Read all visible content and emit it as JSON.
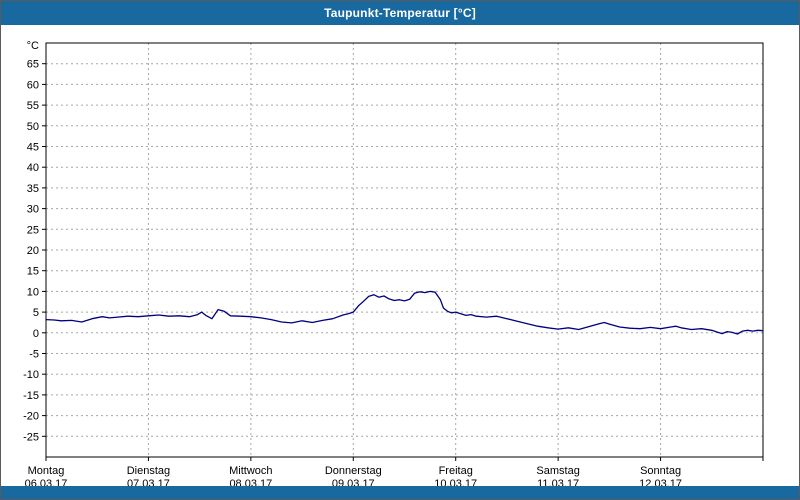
{
  "window": {
    "title": "Taupunkt-Temperatur [°C]",
    "titlebar_color": "#17699f",
    "bottombar_color": "#17699f"
  },
  "chart_data": {
    "type": "line",
    "title": "Taupunkt-Temperatur [°C]",
    "ylabel": "°C",
    "ylim": [
      -30,
      70
    ],
    "xlim": [
      0,
      7
    ],
    "grid": "dashed",
    "legend": "none",
    "yticks": [
      65,
      60,
      55,
      50,
      45,
      40,
      35,
      30,
      25,
      20,
      15,
      10,
      5,
      0,
      -5,
      -10,
      -15,
      -20,
      -25
    ],
    "x_days": [
      {
        "name": "Montag",
        "date": "06.03.17"
      },
      {
        "name": "Dienstag",
        "date": "07.03.17"
      },
      {
        "name": "Mittwoch",
        "date": "08.03.17"
      },
      {
        "name": "Donnerstag",
        "date": "09.03.17"
      },
      {
        "name": "Freitag",
        "date": "10.03.17"
      },
      {
        "name": "Samstag",
        "date": "11.03.17"
      },
      {
        "name": "Sonntag",
        "date": "12.03.17"
      }
    ],
    "series": [
      {
        "name": "Taupunkt-Temperatur",
        "color": "#000080",
        "x": [
          0.0,
          0.08,
          0.15,
          0.25,
          0.35,
          0.45,
          0.55,
          0.62,
          0.7,
          0.8,
          0.9,
          1.0,
          1.1,
          1.2,
          1.3,
          1.4,
          1.48,
          1.52,
          1.56,
          1.62,
          1.68,
          1.74,
          1.8,
          1.9,
          2.0,
          2.1,
          2.2,
          2.3,
          2.4,
          2.5,
          2.6,
          2.7,
          2.8,
          2.9,
          2.95,
          3.0,
          3.05,
          3.1,
          3.15,
          3.2,
          3.25,
          3.3,
          3.35,
          3.4,
          3.45,
          3.5,
          3.55,
          3.6,
          3.65,
          3.7,
          3.75,
          3.8,
          3.85,
          3.88,
          3.92,
          3.96,
          4.0,
          4.05,
          4.1,
          4.15,
          4.2,
          4.3,
          4.4,
          4.5,
          4.6,
          4.7,
          4.8,
          4.9,
          5.0,
          5.1,
          5.2,
          5.3,
          5.4,
          5.45,
          5.5,
          5.6,
          5.7,
          5.8,
          5.9,
          6.0,
          6.1,
          6.15,
          6.2,
          6.3,
          6.4,
          6.5,
          6.55,
          6.6,
          6.65,
          6.7,
          6.75,
          6.8,
          6.85,
          6.9,
          6.95,
          7.0
        ],
        "values": [
          3.2,
          3.1,
          2.9,
          3.0,
          2.6,
          3.4,
          3.9,
          3.6,
          3.8,
          4.0,
          3.9,
          4.1,
          4.3,
          4.0,
          4.1,
          3.9,
          4.4,
          5.0,
          4.2,
          3.4,
          5.6,
          5.2,
          4.1,
          4.0,
          3.9,
          3.6,
          3.2,
          2.6,
          2.4,
          2.9,
          2.5,
          3.0,
          3.4,
          4.3,
          4.6,
          5.0,
          6.5,
          7.6,
          8.8,
          9.2,
          8.6,
          8.9,
          8.2,
          7.8,
          8.0,
          7.7,
          8.1,
          9.6,
          9.9,
          9.7,
          10.0,
          9.8,
          8.0,
          6.0,
          5.2,
          4.8,
          5.0,
          4.6,
          4.2,
          4.4,
          4.0,
          3.8,
          4.0,
          3.4,
          2.8,
          2.2,
          1.6,
          1.2,
          0.9,
          1.2,
          0.8,
          1.5,
          2.2,
          2.5,
          2.1,
          1.4,
          1.1,
          1.0,
          1.3,
          1.0,
          1.4,
          1.6,
          1.2,
          0.8,
          1.0,
          0.6,
          0.2,
          -0.2,
          0.3,
          0.1,
          -0.3,
          0.4,
          0.6,
          0.4,
          0.6,
          0.5
        ]
      }
    ]
  }
}
